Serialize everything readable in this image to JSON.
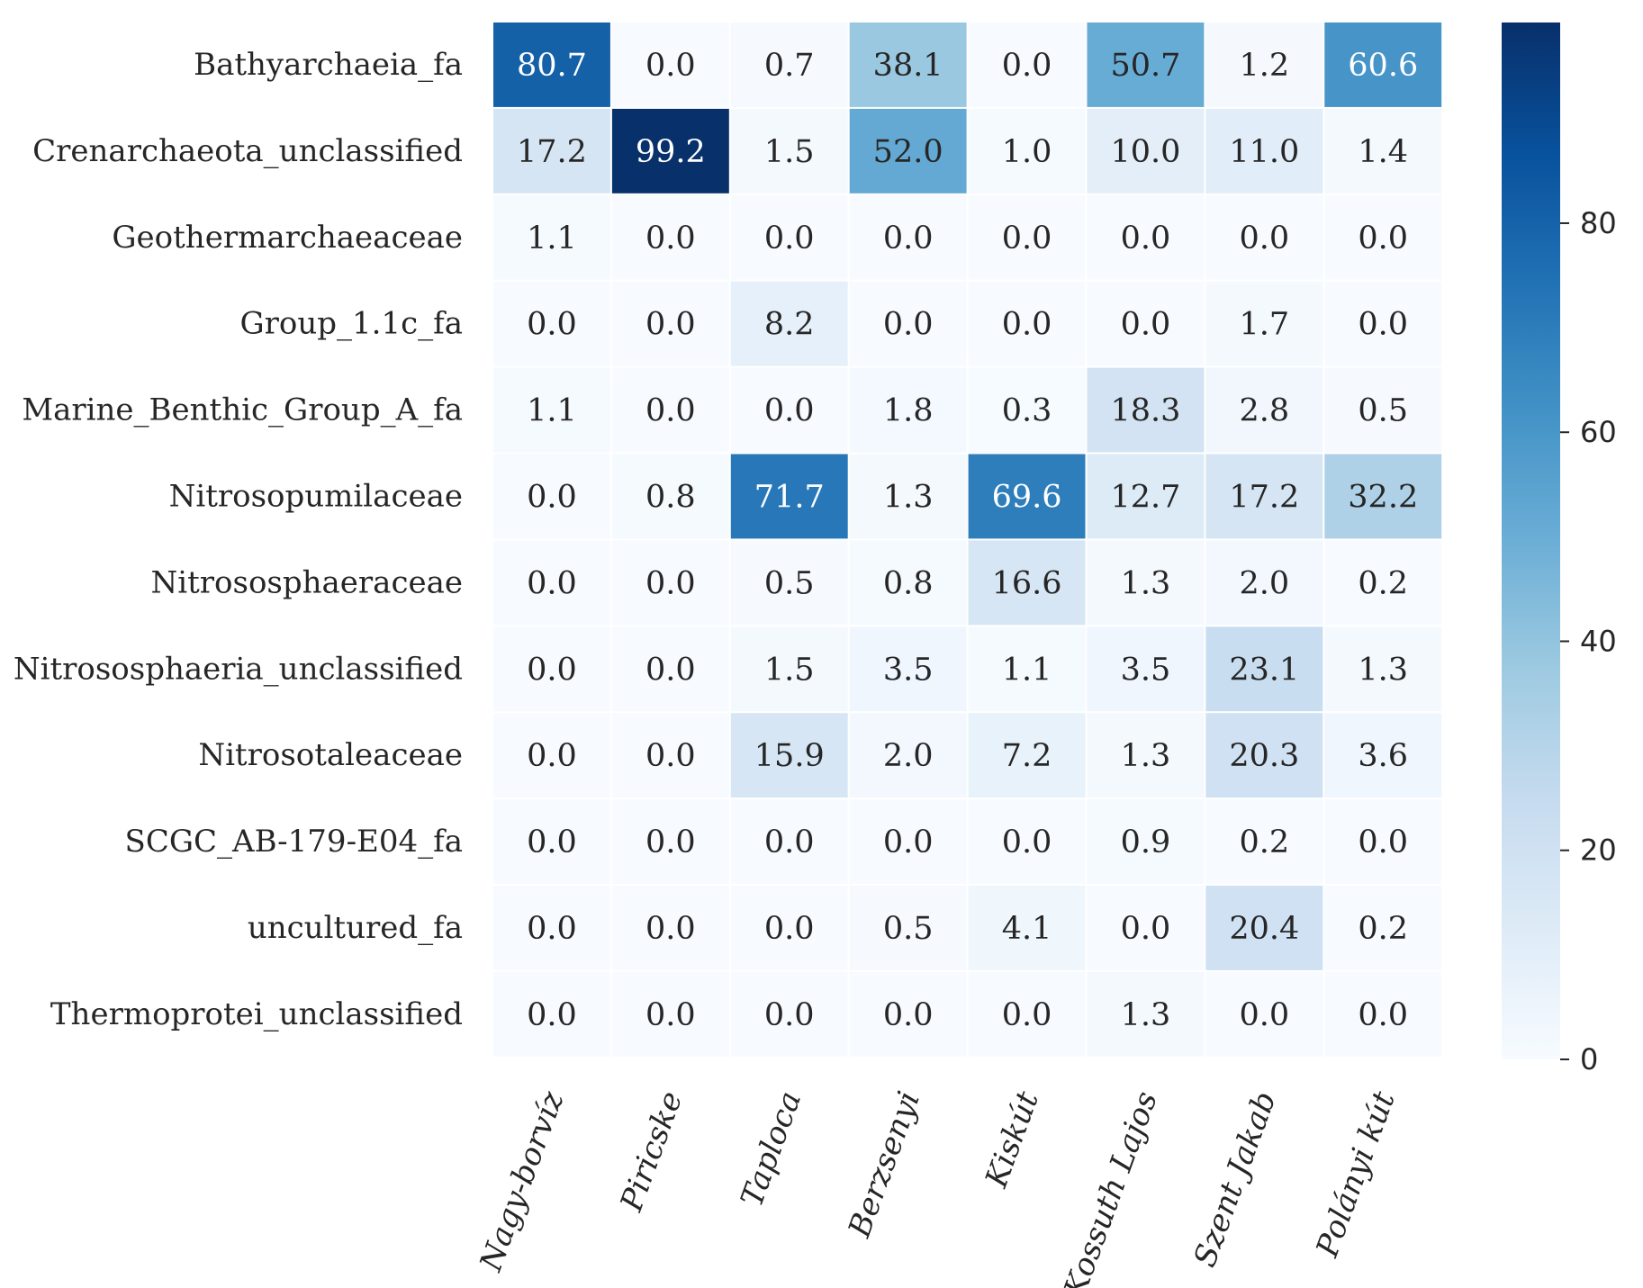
{
  "chart_data": {
    "type": "heatmap",
    "rows": [
      "Bathyarchaeia_fa",
      "Crenarchaeota_unclassified",
      "Geothermarchaeaceae",
      "Group_1.1c_fa",
      "Marine_Benthic_Group_A_fa",
      "Nitrosopumilaceae",
      "Nitrososphaeraceae",
      "Nitrososphaeria_unclassified",
      "Nitrosotaleaceae",
      "SCGC_AB-179-E04_fa",
      "uncultured_fa",
      "Thermoprotei_unclassified"
    ],
    "columns": [
      "Nagy-borvíz",
      "Piricske",
      "Taploca",
      "Berzsenyi",
      "Kiskút",
      "Kossuth Lajos",
      "Szent Jakab",
      "Polányi kút"
    ],
    "values": [
      [
        80.7,
        0.0,
        0.7,
        38.1,
        0.0,
        50.7,
        1.2,
        60.6
      ],
      [
        17.2,
        99.2,
        1.5,
        52.0,
        1.0,
        10.0,
        11.0,
        1.4
      ],
      [
        1.1,
        0.0,
        0.0,
        0.0,
        0.0,
        0.0,
        0.0,
        0.0
      ],
      [
        0.0,
        0.0,
        8.2,
        0.0,
        0.0,
        0.0,
        1.7,
        0.0
      ],
      [
        1.1,
        0.0,
        0.0,
        1.8,
        0.3,
        18.3,
        2.8,
        0.5
      ],
      [
        0.0,
        0.8,
        71.7,
        1.3,
        69.6,
        12.7,
        17.2,
        32.2
      ],
      [
        0.0,
        0.0,
        0.5,
        0.8,
        16.6,
        1.3,
        2.0,
        0.2
      ],
      [
        0.0,
        0.0,
        1.5,
        3.5,
        1.1,
        3.5,
        23.1,
        1.3
      ],
      [
        0.0,
        0.0,
        15.9,
        2.0,
        7.2,
        1.3,
        20.3,
        3.6
      ],
      [
        0.0,
        0.0,
        0.0,
        0.0,
        0.0,
        0.9,
        0.2,
        0.0
      ],
      [
        0.0,
        0.0,
        0.0,
        0.5,
        4.1,
        0.0,
        20.4,
        0.2
      ],
      [
        0.0,
        0.0,
        0.0,
        0.0,
        0.0,
        1.3,
        0.0,
        0.0
      ]
    ],
    "value_format": "0.0",
    "colormap": "Blues",
    "colormap_stops": [
      "#f7fbff",
      "#deebf7",
      "#c6dbef",
      "#9ecae1",
      "#6baed6",
      "#4292c6",
      "#2171b5",
      "#08519c",
      "#08306b"
    ],
    "vmin": 0,
    "vmax": 99.2,
    "colorbar": {
      "ticks": [
        0,
        20,
        40,
        60,
        80
      ],
      "range": [
        0,
        99.2
      ]
    }
  }
}
